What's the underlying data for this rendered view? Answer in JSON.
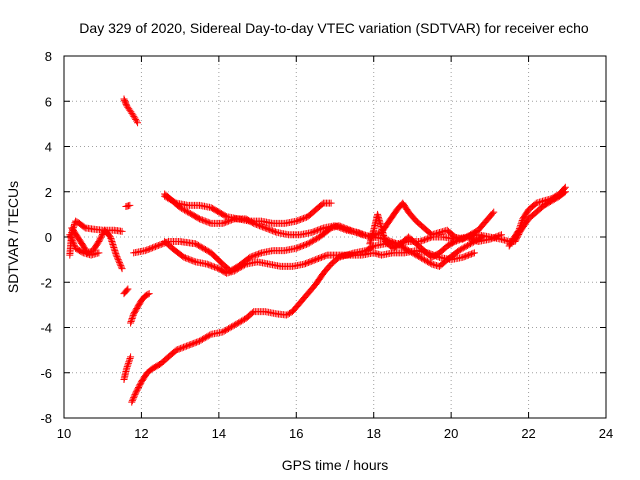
{
  "chart_data": {
    "type": "scatter",
    "title": "Day 329 of 2020, Sidereal Day-to-day VTEC variation (SDTVAR) for receiver echo",
    "xlabel": "GPS time / hours",
    "ylabel": "SDTVAR / TECUs",
    "xlim": [
      10,
      24
    ],
    "ylim": [
      -8,
      8
    ],
    "xticks": [
      "10",
      "12",
      "14",
      "16",
      "18",
      "20",
      "22",
      "24"
    ],
    "yticks": [
      "8",
      "6",
      "4",
      "2",
      "0",
      "-2",
      "-4",
      "-6",
      "-8"
    ],
    "grid": true,
    "legend": "none",
    "marker": "plus",
    "color": "#ff0000",
    "series": [
      {
        "points": [
          [
            11.55,
            6.1
          ],
          [
            11.62,
            5.8
          ],
          [
            11.7,
            5.6
          ],
          [
            11.78,
            5.4
          ],
          [
            11.85,
            5.2
          ],
          [
            11.9,
            5.05
          ]
        ]
      },
      {
        "points": [
          [
            10.15,
            -0.8
          ],
          [
            10.2,
            0.2
          ],
          [
            10.3,
            0.7
          ],
          [
            10.4,
            0.6
          ],
          [
            10.55,
            0.4
          ],
          [
            10.75,
            0.35
          ],
          [
            11.0,
            0.3
          ],
          [
            11.3,
            0.3
          ],
          [
            11.5,
            0.25
          ]
        ]
      },
      {
        "points": [
          [
            10.2,
            0.4
          ],
          [
            10.35,
            0.0
          ],
          [
            10.5,
            -0.4
          ],
          [
            10.6,
            -0.7
          ],
          [
            10.75,
            -0.6
          ],
          [
            10.9,
            -0.2
          ],
          [
            11.05,
            0.3
          ],
          [
            11.2,
            0.0
          ],
          [
            11.35,
            -0.8
          ],
          [
            11.5,
            -1.4
          ]
        ]
      },
      {
        "points": [
          [
            10.15,
            0.1
          ],
          [
            10.3,
            -0.5
          ],
          [
            10.5,
            -0.7
          ],
          [
            10.7,
            -0.8
          ],
          [
            10.9,
            -0.7
          ]
        ]
      },
      {
        "points": [
          [
            11.6,
            1.35
          ],
          [
            11.7,
            1.4
          ]
        ]
      },
      {
        "points": [
          [
            11.55,
            -2.5
          ],
          [
            11.65,
            -2.3
          ]
        ]
      },
      {
        "points": [
          [
            11.55,
            -6.3
          ],
          [
            11.62,
            -5.8
          ],
          [
            11.72,
            -5.3
          ]
        ]
      },
      {
        "points": [
          [
            11.72,
            -3.8
          ],
          [
            11.8,
            -3.4
          ],
          [
            11.9,
            -3.1
          ],
          [
            12.0,
            -2.8
          ],
          [
            12.1,
            -2.6
          ],
          [
            12.2,
            -2.5
          ]
        ]
      },
      {
        "points": [
          [
            11.75,
            -7.3
          ],
          [
            11.85,
            -6.9
          ],
          [
            12.0,
            -6.4
          ],
          [
            12.15,
            -6.0
          ],
          [
            12.3,
            -5.8
          ],
          [
            12.5,
            -5.6
          ],
          [
            12.7,
            -5.3
          ],
          [
            12.9,
            -5.0
          ],
          [
            13.2,
            -4.8
          ],
          [
            13.5,
            -4.6
          ],
          [
            13.8,
            -4.3
          ],
          [
            14.1,
            -4.2
          ],
          [
            14.4,
            -3.9
          ],
          [
            14.7,
            -3.6
          ],
          [
            14.9,
            -3.3
          ],
          [
            15.2,
            -3.3
          ],
          [
            15.5,
            -3.4
          ],
          [
            15.75,
            -3.45
          ],
          [
            15.9,
            -3.3
          ],
          [
            16.1,
            -2.9
          ],
          [
            16.3,
            -2.5
          ],
          [
            16.5,
            -2.1
          ],
          [
            16.7,
            -1.6
          ],
          [
            16.9,
            -1.2
          ],
          [
            17.1,
            -0.9
          ],
          [
            17.3,
            -0.8
          ],
          [
            17.5,
            -0.7
          ],
          [
            17.8,
            -0.6
          ],
          [
            18.0,
            -0.4
          ],
          [
            18.3,
            -0.3
          ],
          [
            18.6,
            -0.3
          ],
          [
            18.9,
            -0.2
          ],
          [
            19.2,
            -0.2
          ],
          [
            19.5,
            0.0
          ],
          [
            19.8,
            0.0
          ],
          [
            20.1,
            -0.1
          ],
          [
            20.4,
            0.0
          ],
          [
            20.7,
            -0.2
          ],
          [
            21.0,
            -0.1
          ],
          [
            21.3,
            0.1
          ]
        ]
      },
      {
        "points": [
          [
            11.8,
            -0.7
          ],
          [
            12.1,
            -0.6
          ],
          [
            12.4,
            -0.4
          ],
          [
            12.7,
            -0.2
          ],
          [
            13.0,
            -0.2
          ],
          [
            13.4,
            -0.3
          ],
          [
            13.8,
            -0.7
          ],
          [
            14.1,
            -1.2
          ],
          [
            14.3,
            -1.5
          ],
          [
            14.5,
            -1.3
          ],
          [
            14.8,
            -0.9
          ],
          [
            15.1,
            -0.7
          ],
          [
            15.4,
            -0.6
          ],
          [
            15.7,
            -0.6
          ],
          [
            16.0,
            -0.5
          ],
          [
            16.3,
            -0.3
          ],
          [
            16.6,
            0.0
          ],
          [
            16.9,
            0.4
          ],
          [
            17.1,
            0.5
          ],
          [
            17.4,
            0.3
          ],
          [
            17.7,
            0.1
          ],
          [
            18.0,
            0.0
          ],
          [
            18.3,
            -0.1
          ],
          [
            18.6,
            -0.3
          ],
          [
            18.9,
            -0.6
          ],
          [
            19.2,
            -0.9
          ],
          [
            19.5,
            -1.2
          ],
          [
            19.7,
            -1.3
          ],
          [
            19.9,
            -1.0
          ],
          [
            20.2,
            -0.6
          ],
          [
            20.5,
            -0.3
          ],
          [
            20.8,
            0.0
          ]
        ]
      },
      {
        "points": [
          [
            12.6,
            -0.2
          ],
          [
            12.8,
            -0.5
          ],
          [
            13.1,
            -0.9
          ],
          [
            13.4,
            -1.1
          ],
          [
            13.7,
            -1.2
          ],
          [
            14.0,
            -1.4
          ],
          [
            14.2,
            -1.6
          ],
          [
            14.4,
            -1.5
          ],
          [
            14.7,
            -1.2
          ],
          [
            15.0,
            -1.1
          ],
          [
            15.3,
            -1.2
          ],
          [
            15.6,
            -1.3
          ],
          [
            15.9,
            -1.3
          ],
          [
            16.2,
            -1.2
          ],
          [
            16.5,
            -1.0
          ],
          [
            16.8,
            -0.8
          ],
          [
            17.0,
            -0.8
          ],
          [
            17.4,
            -0.8
          ],
          [
            17.7,
            -0.8
          ],
          [
            18.0,
            -0.7
          ],
          [
            18.2,
            -0.8
          ],
          [
            18.5,
            -0.7
          ],
          [
            18.8,
            -0.7
          ],
          [
            19.1,
            -0.6
          ],
          [
            19.4,
            -0.7
          ],
          [
            19.7,
            -0.9
          ],
          [
            20.0,
            -1.0
          ],
          [
            20.3,
            -0.9
          ],
          [
            20.6,
            -0.7
          ]
        ]
      },
      {
        "points": [
          [
            12.6,
            1.9
          ],
          [
            12.8,
            1.6
          ],
          [
            13.0,
            1.3
          ],
          [
            13.3,
            1.0
          ],
          [
            13.5,
            0.8
          ],
          [
            13.8,
            0.6
          ],
          [
            14.1,
            0.6
          ],
          [
            14.4,
            0.8
          ],
          [
            14.7,
            0.8
          ],
          [
            14.9,
            0.6
          ],
          [
            15.2,
            0.4
          ],
          [
            15.5,
            0.2
          ],
          [
            15.8,
            0.1
          ],
          [
            16.1,
            0.1
          ],
          [
            16.4,
            0.2
          ],
          [
            16.7,
            0.4
          ],
          [
            17.0,
            0.5
          ],
          [
            17.3,
            0.3
          ],
          [
            17.6,
            0.2
          ],
          [
            17.9,
            0.0
          ],
          [
            18.2,
            0.2
          ],
          [
            18.4,
            0.7
          ],
          [
            18.6,
            1.2
          ],
          [
            18.75,
            1.5
          ],
          [
            18.9,
            1.1
          ],
          [
            19.1,
            0.7
          ],
          [
            19.3,
            0.4
          ],
          [
            19.5,
            0.1
          ],
          [
            19.7,
            0.2
          ],
          [
            19.9,
            0.3
          ],
          [
            20.1,
            0.0
          ],
          [
            20.3,
            -0.1
          ],
          [
            20.5,
            0.1
          ],
          [
            20.7,
            0.3
          ],
          [
            20.9,
            0.7
          ],
          [
            21.1,
            1.1
          ]
        ]
      },
      {
        "points": [
          [
            12.6,
            1.8
          ],
          [
            12.9,
            1.5
          ],
          [
            13.2,
            1.4
          ],
          [
            13.5,
            1.4
          ],
          [
            13.8,
            1.3
          ],
          [
            14.0,
            1.1
          ],
          [
            14.2,
            0.9
          ],
          [
            14.5,
            0.8
          ],
          [
            14.8,
            0.7
          ],
          [
            15.1,
            0.7
          ],
          [
            15.4,
            0.6
          ],
          [
            15.7,
            0.6
          ],
          [
            16.0,
            0.7
          ],
          [
            16.3,
            0.9
          ],
          [
            16.5,
            1.2
          ],
          [
            16.7,
            1.5
          ],
          [
            16.9,
            1.5
          ]
        ]
      },
      {
        "points": [
          [
            17.9,
            -0.3
          ],
          [
            18.0,
            0.3
          ],
          [
            18.1,
            1.0
          ],
          [
            18.2,
            0.4
          ],
          [
            18.3,
            -0.2
          ],
          [
            18.5,
            -0.5
          ],
          [
            18.7,
            -0.3
          ],
          [
            18.9,
            0.0
          ],
          [
            19.1,
            -0.3
          ],
          [
            19.3,
            -0.6
          ],
          [
            19.5,
            -0.9
          ],
          [
            19.7,
            -0.7
          ],
          [
            19.9,
            -0.4
          ],
          [
            20.1,
            -0.2
          ],
          [
            20.4,
            0.0
          ],
          [
            20.7,
            0.1
          ],
          [
            21.0,
            0.0
          ],
          [
            21.3,
            -0.1
          ],
          [
            21.5,
            -0.2
          ],
          [
            21.65,
            -0.2
          ],
          [
            21.8,
            0.3
          ],
          [
            22.0,
            0.8
          ],
          [
            22.2,
            1.1
          ],
          [
            22.4,
            1.4
          ],
          [
            22.6,
            1.6
          ],
          [
            22.8,
            1.8
          ],
          [
            22.95,
            2.0
          ]
        ]
      },
      {
        "points": [
          [
            21.5,
            -0.4
          ],
          [
            21.6,
            -0.1
          ],
          [
            21.75,
            0.3
          ],
          [
            21.85,
            0.8
          ],
          [
            22.0,
            1.2
          ],
          [
            22.2,
            1.5
          ],
          [
            22.4,
            1.6
          ],
          [
            22.6,
            1.7
          ],
          [
            22.8,
            1.9
          ],
          [
            22.95,
            2.2
          ]
        ]
      }
    ]
  }
}
